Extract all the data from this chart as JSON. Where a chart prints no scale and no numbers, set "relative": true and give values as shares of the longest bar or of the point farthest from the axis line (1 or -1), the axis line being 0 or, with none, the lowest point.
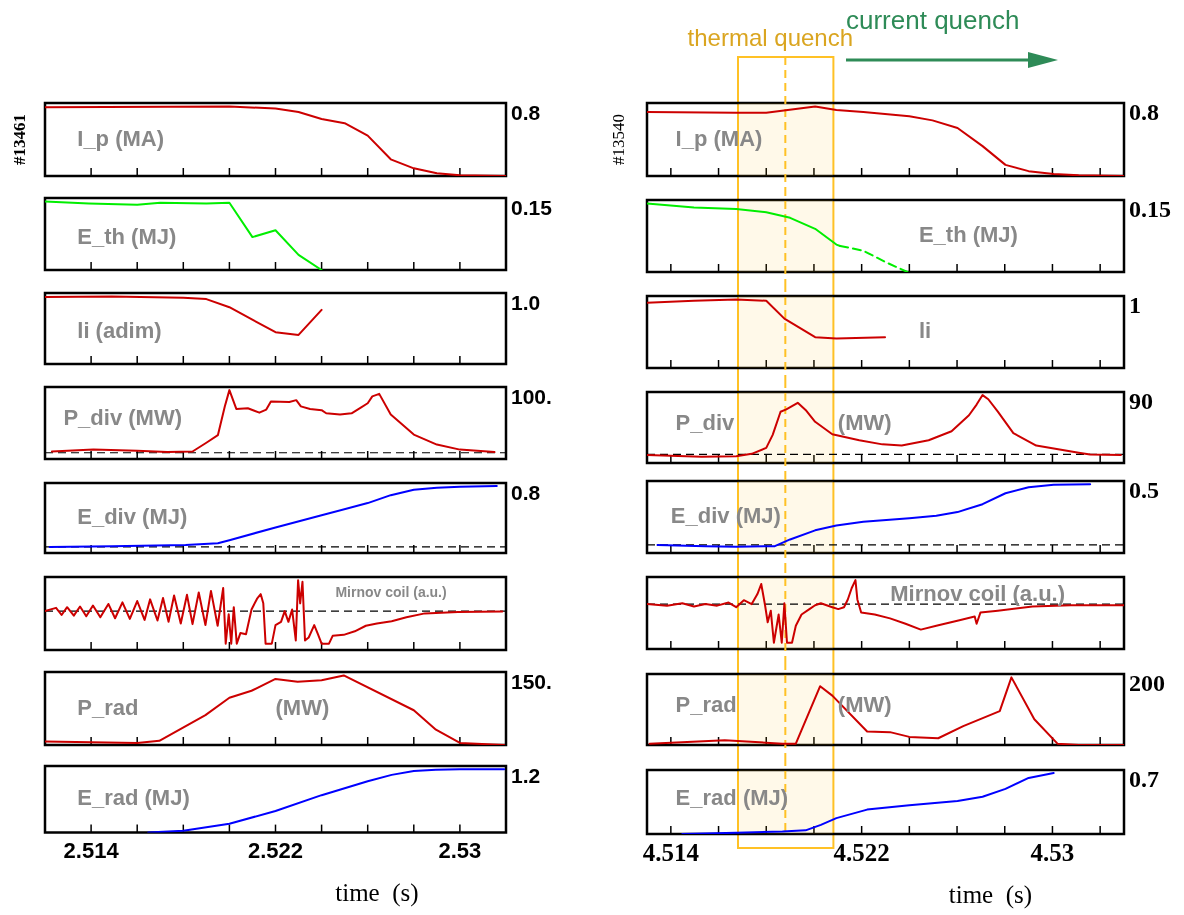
{
  "chart_data": [
    {
      "type": "line",
      "title": "I_p (MA)",
      "ylabel": "#13461",
      "annotations": [
        "0.8"
      ],
      "relative": true,
      "tick_labels": false,
      "xlim": [
        2.512,
        2.532
      ],
      "xticks": [
        2.514,
        {
          "value": 2.516,
          "label": null
        },
        {
          "value": 2.518,
          "label": null
        },
        {
          "value": 2.52,
          "label": null
        },
        2.522,
        {
          "value": 2.524,
          "label": null
        },
        {
          "value": 2.526,
          "label": null
        },
        {
          "value": 2.528,
          "label": null
        },
        2.53
      ],
      "series": [
        {
          "color": "#cc0000",
          "x": [
            2.512,
            2.52,
            2.522,
            2.523,
            2.524,
            2.525,
            2.526,
            2.527,
            2.528,
            2.529,
            2.53,
            2.532
          ],
          "values": [
            0.99,
            1.0,
            0.97,
            0.92,
            0.82,
            0.76,
            0.58,
            0.24,
            0.11,
            0.04,
            0.01,
            0
          ]
        }
      ]
    },
    {
      "type": "line",
      "title": "E_th (MJ)",
      "annotations": [
        "0.15"
      ],
      "relative": true,
      "tick_labels": false,
      "xlim": [
        2.512,
        2.532
      ],
      "xticks": [
        2.514,
        {
          "value": 2.516,
          "label": null
        },
        {
          "value": 2.518,
          "label": null
        },
        {
          "value": 2.52,
          "label": null
        },
        2.522,
        {
          "value": 2.524,
          "label": null
        },
        {
          "value": 2.526,
          "label": null
        },
        {
          "value": 2.528,
          "label": null
        },
        2.53
      ],
      "series": [
        {
          "color": "#00ee00",
          "x": [
            2.512,
            2.5139,
            2.516,
            2.517,
            2.519,
            2.52,
            2.521,
            2.522,
            2.523,
            2.524
          ],
          "values": [
            1.0,
            0.97,
            0.95,
            0.98,
            0.97,
            0.98,
            0.48,
            0.58,
            0.22,
            0
          ]
        }
      ]
    },
    {
      "type": "line",
      "title": "li (adim)",
      "annotations": [
        "1.0"
      ],
      "relative": true,
      "tick_labels": false,
      "xlim": [
        2.512,
        2.532
      ],
      "xticks": [
        2.514,
        {
          "value": 2.516,
          "label": null
        },
        {
          "value": 2.518,
          "label": null
        },
        {
          "value": 2.52,
          "label": null
        },
        2.522,
        {
          "value": 2.524,
          "label": null
        },
        {
          "value": 2.526,
          "label": null
        },
        {
          "value": 2.528,
          "label": null
        },
        2.53
      ],
      "series": [
        {
          "color": "#cc0000",
          "x": [
            2.512,
            2.5149,
            2.518,
            2.519,
            2.52,
            2.522,
            2.523,
            2.524
          ],
          "values": [
            0.99,
            1.0,
            0.98,
            0.96,
            0.84,
            0.47,
            0.43,
            0.8
          ]
        }
      ]
    },
    {
      "type": "line",
      "title": "P_div (MW)",
      "annotations": [
        "100."
      ],
      "relative": true,
      "tick_labels": false,
      "xlim": [
        2.512,
        2.532
      ],
      "xticks": [
        2.514,
        {
          "value": 2.516,
          "label": null
        },
        {
          "value": 2.518,
          "label": null
        },
        {
          "value": 2.52,
          "label": null
        },
        2.522,
        {
          "value": 2.524,
          "label": null
        },
        {
          "value": 2.526,
          "label": null
        },
        {
          "value": 2.528,
          "label": null
        },
        2.53
      ],
      "ref_lines": [
        {
          "axis": "y",
          "value": 0,
          "color": "#000000",
          "line_style": "dashed"
        }
      ],
      "series": [
        {
          "color": "#cc0000",
          "x": [
            2.5123,
            2.5141,
            2.516,
            2.5173,
            2.5184,
            2.519,
            2.5195,
            2.5198,
            2.52,
            2.5203,
            2.5208,
            2.5213,
            2.5216,
            2.5218,
            2.5226,
            2.5229,
            2.5231,
            2.5235,
            2.524,
            2.5242,
            2.5248,
            2.5253,
            2.5257,
            2.526,
            2.5262,
            2.5265,
            2.527,
            2.528,
            2.529,
            2.53,
            2.5315
          ],
          "values": [
            0.02,
            0.05,
            0.03,
            0.01,
            0.02,
            0.16,
            0.28,
            0.74,
            1.0,
            0.7,
            0.71,
            0.64,
            0.69,
            0.82,
            0.81,
            0.84,
            0.74,
            0.7,
            0.68,
            0.63,
            0.61,
            0.63,
            0.72,
            0.79,
            0.9,
            0.94,
            0.61,
            0.29,
            0.13,
            0.05,
            0.01
          ]
        }
      ]
    },
    {
      "type": "line",
      "title": "E_div (MJ)",
      "annotations": [
        "0.8"
      ],
      "relative": true,
      "tick_labels": false,
      "xlim": [
        2.512,
        2.532
      ],
      "xticks": [
        2.514,
        {
          "value": 2.516,
          "label": null
        },
        {
          "value": 2.518,
          "label": null
        },
        {
          "value": 2.52,
          "label": null
        },
        2.522,
        {
          "value": 2.524,
          "label": null
        },
        {
          "value": 2.526,
          "label": null
        },
        {
          "value": 2.528,
          "label": null
        },
        2.53
      ],
      "ref_lines": [
        {
          "axis": "y",
          "value": 0,
          "color": "#000000",
          "line_style": "dashed"
        }
      ],
      "series": [
        {
          "color": "#0000ff",
          "x": [
            2.5122,
            2.5149,
            2.5181,
            2.5195,
            2.52,
            2.522,
            2.524,
            2.526,
            2.527,
            2.528,
            2.529,
            2.53,
            2.5316
          ],
          "values": [
            0,
            0.01,
            0.03,
            0.06,
            0.11,
            0.32,
            0.52,
            0.72,
            0.85,
            0.94,
            0.97,
            0.99,
            1.0
          ]
        }
      ]
    },
    {
      "type": "line",
      "title": "Mirnov coil (a.u.)",
      "relative": true,
      "tick_labels": false,
      "xlim": [
        2.512,
        2.532
      ],
      "xticks": [
        2.514,
        {
          "value": 2.516,
          "label": null
        },
        {
          "value": 2.518,
          "label": null
        },
        {
          "value": 2.52,
          "label": null
        },
        2.522,
        {
          "value": 2.524,
          "label": null
        },
        {
          "value": 2.526,
          "label": null
        },
        {
          "value": 2.528,
          "label": null
        },
        2.53
      ],
      "ref_lines": [
        {
          "axis": "y",
          "value": 0,
          "color": "#000000",
          "line_style": "dashed"
        }
      ],
      "series": [
        {
          "color": "#cc0000",
          "x": [
            2.512,
            2.51248,
            2.51272,
            2.51296,
            2.51325,
            2.51352,
            2.51379,
            2.51408,
            2.5144,
            2.51475,
            2.51504,
            2.51536,
            2.51568,
            2.516,
            2.51632,
            2.51656,
            2.51688,
            2.51712,
            2.51736,
            2.5176,
            2.51789,
            2.51816,
            2.5184,
            2.51867,
            2.51896,
            2.5192,
            2.51949,
            2.51973,
            2.51984,
            2.51997,
            2.52008,
            2.52019,
            2.52032,
            2.52048,
            2.52072,
            2.52096,
            2.5212,
            2.52136,
            2.52147,
            2.52157,
            2.52184,
            2.522,
            2.52224,
            2.5224,
            2.52256,
            2.52272,
            2.52288,
            2.52298,
            2.52307,
            2.52317,
            2.52328,
            2.52344,
            2.52368,
            2.52384,
            2.524,
            2.52432,
            2.52448,
            2.52496,
            2.52544,
            2.52592,
            2.5264,
            2.52704,
            2.52768,
            2.52848,
            2.52992,
            2.53184
          ],
          "values": [
            0,
            0.1,
            -0.12,
            0.12,
            -0.14,
            0.14,
            -0.16,
            0.17,
            -0.19,
            0.22,
            -0.22,
            0.27,
            -0.24,
            0.31,
            -0.27,
            0.36,
            -0.29,
            0.4,
            -0.33,
            0.48,
            -0.38,
            0.5,
            -0.4,
            0.57,
            -0.43,
            0.62,
            -0.45,
            0.71,
            -1.0,
            -0.1,
            -1.0,
            0.12,
            -1.0,
            -0.67,
            -0.71,
            0.05,
            0.38,
            0.52,
            0.24,
            -1.0,
            -1.0,
            -0.43,
            -0.33,
            0,
            -0.33,
            0.05,
            -0.9,
            0.95,
            0.24,
            0.9,
            -0.9,
            -0.81,
            -0.43,
            -0.71,
            -1.0,
            -1.0,
            -0.76,
            -0.73,
            -0.62,
            -0.45,
            -0.38,
            -0.31,
            -0.19,
            -0.07,
            -0.03,
            -0.01
          ]
        }
      ]
    },
    {
      "type": "line",
      "title": "P_rad",
      "annotations": [
        "150.",
        "(MW)"
      ],
      "relative": true,
      "tick_labels": false,
      "xlim": [
        2.512,
        2.532
      ],
      "xticks": [
        2.514,
        {
          "value": 2.516,
          "label": null
        },
        {
          "value": 2.518,
          "label": null
        },
        {
          "value": 2.52,
          "label": null
        },
        2.522,
        {
          "value": 2.524,
          "label": null
        },
        {
          "value": 2.526,
          "label": null
        },
        {
          "value": 2.528,
          "label": null
        },
        2.53
      ],
      "series": [
        {
          "color": "#cc0000",
          "x": [
            2.512,
            2.516,
            2.51696,
            2.51896,
            2.52,
            2.52096,
            2.522,
            2.52296,
            2.524,
            2.52496,
            2.528,
            2.52896,
            2.53,
            2.53192
          ],
          "values": [
            0.05,
            0.03,
            0.06,
            0.43,
            0.68,
            0.78,
            0.95,
            0.91,
            0.93,
            1.0,
            0.5,
            0.22,
            0.03,
            0
          ]
        }
      ]
    },
    {
      "type": "line",
      "title": "E_rad (MJ)",
      "xlabel": "time  (s)",
      "annotations": [
        "1.2"
      ],
      "relative": true,
      "tick_labels": "x",
      "xlim": [
        2.512,
        2.532
      ],
      "xticks": [
        2.514,
        {
          "value": 2.516,
          "label": null
        },
        {
          "value": 2.518,
          "label": null
        },
        {
          "value": 2.52,
          "label": null
        },
        2.522,
        {
          "value": 2.524,
          "label": null
        },
        {
          "value": 2.526,
          "label": null
        },
        {
          "value": 2.528,
          "label": null
        },
        2.53
      ],
      "series": [
        {
          "color": "#0000ff",
          "x": [
            2.51648,
            2.518,
            2.52,
            2.522,
            2.524,
            2.526,
            2.52704,
            2.528,
            2.52896,
            2.53,
            2.53192
          ],
          "values": [
            0,
            0.03,
            0.14,
            0.34,
            0.59,
            0.81,
            0.91,
            0.97,
            0.99,
            1.0,
            1.0
          ]
        }
      ]
    },
    {
      "type": "line",
      "title": "I_p (MA)",
      "ylabel": "#13540",
      "annotations": [
        "0.8",
        "current quench"
      ],
      "relative": true,
      "tick_labels": false,
      "xlim": [
        4.513,
        4.533
      ],
      "xticks": [
        4.514,
        {
          "value": 4.516,
          "label": null
        },
        {
          "value": 4.518,
          "label": null
        },
        {
          "value": 4.52,
          "label": null
        },
        4.522,
        {
          "value": 4.524,
          "label": null
        },
        {
          "value": 4.526,
          "label": null
        },
        {
          "value": 4.528,
          "label": null
        },
        4.53,
        {
          "value": 4.532,
          "label": null
        }
      ],
      "bands": [
        {
          "axis": "x",
          "from": 4.5168,
          "to": 4.5208,
          "label": "thermal quench",
          "color": "#ffc125"
        }
      ],
      "ref_lines": [
        {
          "axis": "x",
          "value": 4.5188,
          "color": "#ffc125",
          "line_style": "dashed"
        }
      ],
      "series": [
        {
          "color": "#cc0000",
          "x": [
            4.513,
            4.51674,
            4.518,
            4.52005,
            4.52094,
            4.52207,
            4.524,
            4.52497,
            4.52602,
            4.52707,
            4.52803,
            4.529,
            4.53005,
            4.5311,
            4.533
          ],
          "values": [
            0.92,
            0.91,
            0.91,
            1.0,
            0.95,
            0.92,
            0.86,
            0.8,
            0.69,
            0.43,
            0.16,
            0.07,
            0.03,
            0.01,
            0
          ]
        }
      ]
    },
    {
      "type": "line",
      "title": "E_th (MJ)",
      "annotations": [
        "0.15"
      ],
      "relative": true,
      "tick_labels": false,
      "xlim": [
        4.513,
        4.533
      ],
      "xticks": [
        4.514,
        {
          "value": 4.516,
          "label": null
        },
        {
          "value": 4.518,
          "label": null
        },
        {
          "value": 4.52,
          "label": null
        },
        4.522,
        {
          "value": 4.524,
          "label": null
        },
        {
          "value": 4.526,
          "label": null
        },
        {
          "value": 4.528,
          "label": null
        },
        4.53,
        {
          "value": 4.532,
          "label": null
        }
      ],
      "bands": [
        {
          "axis": "x",
          "from": 4.5168,
          "to": 4.5208,
          "color": "#ffc125"
        }
      ],
      "ref_lines": [
        {
          "axis": "x",
          "value": 4.5188,
          "color": "#ffc125",
          "line_style": "dashed"
        }
      ],
      "series": [
        {
          "color": "#00ee00",
          "x": [
            4.513,
            4.51497,
            4.51674,
            4.518,
            4.519,
            4.52005,
            4.52094,
            4.5211
          ],
          "values": [
            1.0,
            0.94,
            0.92,
            0.87,
            0.79,
            0.63,
            0.4,
            0.38
          ]
        },
        {
          "color": "#00ee00",
          "line_style": "dashed",
          "x": [
            4.5211,
            4.52207,
            4.52303,
            4.52392
          ],
          "values": [
            0.38,
            0.31,
            0.14,
            0
          ]
        }
      ]
    },
    {
      "type": "line",
      "title": "li",
      "annotations": [
        "1"
      ],
      "relative": true,
      "tick_labels": false,
      "xlim": [
        4.513,
        4.533
      ],
      "xticks": [
        4.514,
        {
          "value": 4.516,
          "label": null
        },
        {
          "value": 4.518,
          "label": null
        },
        {
          "value": 4.52,
          "label": null
        },
        4.522,
        {
          "value": 4.524,
          "label": null
        },
        {
          "value": 4.526,
          "label": null
        },
        {
          "value": 4.528,
          "label": null
        },
        4.53,
        {
          "value": 4.532,
          "label": null
        }
      ],
      "bands": [
        {
          "axis": "x",
          "from": 4.5168,
          "to": 4.5208,
          "color": "#ffc125"
        }
      ],
      "ref_lines": [
        {
          "axis": "x",
          "value": 4.5188,
          "color": "#ffc125",
          "line_style": "dashed"
        }
      ],
      "series": [
        {
          "color": "#cc0000",
          "x": [
            4.513,
            4.51497,
            4.51674,
            4.518,
            4.51876,
            4.52005,
            4.52094,
            4.52298
          ],
          "values": [
            0.95,
            0.98,
            1.0,
            0.98,
            0.72,
            0.45,
            0.43,
            0.45
          ]
        }
      ]
    },
    {
      "type": "line",
      "title": "P_div",
      "annotations": [
        "90",
        "(MW)"
      ],
      "relative": true,
      "tick_labels": false,
      "xlim": [
        4.513,
        4.533
      ],
      "xticks": [
        4.514,
        {
          "value": 4.516,
          "label": null
        },
        {
          "value": 4.518,
          "label": null
        },
        {
          "value": 4.52,
          "label": null
        },
        4.522,
        {
          "value": 4.524,
          "label": null
        },
        {
          "value": 4.526,
          "label": null
        },
        {
          "value": 4.528,
          "label": null
        },
        4.53,
        {
          "value": 4.532,
          "label": null
        }
      ],
      "bands": [
        {
          "axis": "x",
          "from": 4.5168,
          "to": 4.5208,
          "color": "#ffc125"
        }
      ],
      "ref_lines": [
        {
          "axis": "y",
          "value": 0,
          "color": "#000000",
          "line_style": "dashed"
        },
        {
          "axis": "x",
          "value": 4.5188,
          "color": "#ffc125",
          "line_style": "dashed"
        }
      ],
      "series": [
        {
          "color": "#cc0000",
          "x": [
            4.513,
            4.51529,
            4.51674,
            4.51739,
            4.518,
            4.51827,
            4.5186,
            4.51884,
            4.51932,
            4.51965,
            4.52005,
            4.52077,
            4.5219,
            4.52287,
            4.52368,
            4.52481,
            4.52577,
            4.5265,
            4.52682,
            4.52707,
            4.52731,
            4.52771,
            4.52836,
            4.52932,
            4.5311,
            4.53158,
            4.53287
          ],
          "values": [
            -0.01,
            -0.04,
            -0.03,
            0.01,
            0.11,
            0.33,
            0.72,
            0.76,
            0.87,
            0.75,
            0.55,
            0.34,
            0.24,
            0.17,
            0.15,
            0.24,
            0.39,
            0.66,
            0.84,
            1.0,
            0.93,
            0.72,
            0.36,
            0.15,
            0.03,
            0,
            -0.01
          ]
        }
      ]
    },
    {
      "type": "line",
      "title": "E_div (MJ)",
      "annotations": [
        "0.5"
      ],
      "relative": true,
      "tick_labels": false,
      "xlim": [
        4.513,
        4.533
      ],
      "xticks": [
        4.514,
        {
          "value": 4.516,
          "label": null
        },
        {
          "value": 4.518,
          "label": null
        },
        {
          "value": 4.52,
          "label": null
        },
        4.522,
        {
          "value": 4.524,
          "label": null
        },
        {
          "value": 4.526,
          "label": null
        },
        {
          "value": 4.528,
          "label": null
        },
        4.53,
        {
          "value": 4.532,
          "label": null
        }
      ],
      "bands": [
        {
          "axis": "x",
          "from": 4.5168,
          "to": 4.5208,
          "color": "#ffc125"
        }
      ],
      "ref_lines": [
        {
          "axis": "y",
          "value": 0,
          "color": "#000000",
          "line_style": "dashed"
        },
        {
          "axis": "x",
          "value": 4.5188,
          "color": "#ffc125",
          "line_style": "dashed"
        }
      ],
      "series": [
        {
          "color": "#0000ff",
          "x": [
            4.51344,
            4.51545,
            4.51674,
            4.51836,
            4.519,
            4.52005,
            4.52094,
            4.52207,
            4.524,
            4.52513,
            4.52602,
            4.52707,
            4.52803,
            4.529,
            4.53005,
            4.53158
          ],
          "values": [
            0,
            -0.02,
            -0.03,
            -0.02,
            0.09,
            0.24,
            0.32,
            0.38,
            0.44,
            0.48,
            0.54,
            0.67,
            0.85,
            0.95,
            0.99,
            1.0
          ]
        }
      ]
    },
    {
      "type": "line",
      "title": "Mirnov coil (a.u.)",
      "relative": true,
      "tick_labels": false,
      "xlim": [
        4.513,
        4.533
      ],
      "xticks": [
        4.514,
        {
          "value": 4.516,
          "label": null
        },
        {
          "value": 4.518,
          "label": null
        },
        {
          "value": 4.52,
          "label": null
        },
        4.522,
        {
          "value": 4.524,
          "label": null
        },
        {
          "value": 4.526,
          "label": null
        },
        {
          "value": 4.528,
          "label": null
        },
        4.53,
        {
          "value": 4.532,
          "label": null
        }
      ],
      "bands": [
        {
          "axis": "x",
          "from": 4.5168,
          "to": 4.5208,
          "color": "#ffc125"
        }
      ],
      "ref_lines": [
        {
          "axis": "y",
          "value": 0,
          "color": "#000000",
          "line_style": "dashed"
        },
        {
          "axis": "x",
          "value": 4.5188,
          "color": "#ffc125",
          "line_style": "dashed"
        }
      ],
      "series": [
        {
          "color": "#cc0000",
          "x": [
            4.513,
            4.51384,
            4.51448,
            4.51497,
            4.51545,
            4.51594,
            4.51642,
            4.51674,
            4.51706,
            4.51739,
            4.51763,
            4.51779,
            4.51795,
            4.51806,
            4.51819,
            4.51832,
            4.51852,
            4.51865,
            4.51876,
            4.51887,
            4.51908,
            4.51924,
            4.51948,
            4.51981,
            4.52005,
            4.52029,
            4.52053,
            4.52077,
            4.52102,
            4.52126,
            4.52142,
            4.52158,
            4.52174,
            4.52182,
            4.52198,
            4.52255,
            4.52319,
            4.52384,
            4.52448,
            4.52513,
            4.5261,
            4.52674,
            4.52682,
            4.52698,
            4.52771,
            4.52916,
            4.53078,
            4.533
          ],
          "values": [
            0,
            -0.04,
            0.02,
            -0.06,
            0,
            -0.04,
            0.04,
            -0.08,
            0.1,
            0,
            0.26,
            0.52,
            -0.03,
            -0.47,
            -0.17,
            -1.0,
            -0.27,
            -1.0,
            0.02,
            -1.0,
            -1.0,
            -0.56,
            -0.27,
            -0.13,
            -0.03,
            0.02,
            -0.03,
            -0.08,
            -0.13,
            -0.08,
            0.12,
            0.41,
            0.62,
            0.12,
            -0.22,
            -0.27,
            -0.37,
            -0.51,
            -0.66,
            -0.56,
            -0.42,
            -0.32,
            -0.51,
            -0.22,
            -0.17,
            -0.06,
            -0.03,
            -0.03
          ]
        }
      ]
    },
    {
      "type": "line",
      "title": "P_rad",
      "annotations": [
        "200",
        "(MW)"
      ],
      "relative": true,
      "tick_labels": false,
      "xlim": [
        4.513,
        4.533
      ],
      "xticks": [
        4.514,
        {
          "value": 4.516,
          "label": null
        },
        {
          "value": 4.518,
          "label": null
        },
        {
          "value": 4.52,
          "label": null
        },
        4.522,
        {
          "value": 4.524,
          "label": null
        },
        {
          "value": 4.526,
          "label": null
        },
        {
          "value": 4.528,
          "label": null
        },
        4.53,
        {
          "value": 4.532,
          "label": null
        }
      ],
      "bands": [
        {
          "axis": "x",
          "from": 4.5168,
          "to": 4.5208,
          "color": "#ffc125"
        }
      ],
      "ref_lines": [
        {
          "axis": "x",
          "value": 4.5188,
          "color": "#ffc125",
          "line_style": "dashed"
        }
      ],
      "series": [
        {
          "color": "#cc0000",
          "x": [
            4.51311,
            4.51626,
            4.51868,
            4.51924,
            4.52026,
            4.52077,
            4.52223,
            4.52319,
            4.524,
            4.52521,
            4.52626,
            4.52779,
            4.52828,
            4.52924,
            4.53021,
            4.5311,
            4.533
          ],
          "values": [
            0.02,
            0.07,
            0.02,
            0.02,
            0.87,
            0.73,
            0.2,
            0.19,
            0.12,
            0.1,
            0.28,
            0.5,
            1.0,
            0.38,
            0.02,
            0,
            0
          ]
        }
      ]
    },
    {
      "type": "line",
      "title": "E_rad (MJ)",
      "xlabel": "time  (s)",
      "annotations": [
        "0.7"
      ],
      "relative": true,
      "tick_labels": "x",
      "xlim": [
        4.513,
        4.533
      ],
      "xticks": [
        4.514,
        {
          "value": 4.516,
          "label": null
        },
        {
          "value": 4.518,
          "label": null
        },
        {
          "value": 4.52,
          "label": null
        },
        4.522,
        {
          "value": 4.524,
          "label": null
        },
        {
          "value": 4.526,
          "label": null
        },
        {
          "value": 4.528,
          "label": null
        },
        4.53,
        {
          "value": 4.532,
          "label": null
        }
      ],
      "bands": [
        {
          "axis": "x",
          "from": 4.5168,
          "to": 4.5208,
          "color": "#ffc125"
        }
      ],
      "ref_lines": [
        {
          "axis": "x",
          "value": 4.5188,
          "color": "#ffc125",
          "line_style": "dashed"
        }
      ],
      "series": [
        {
          "color": "#0000ff",
          "x": [
            4.51448,
            4.51674,
            4.51868,
            4.51965,
            4.52029,
            4.52094,
            4.52223,
            4.524,
            4.52602,
            4.52707,
            4.52803,
            4.529,
            4.53005
          ],
          "values": [
            0,
            0.02,
            0.04,
            0.06,
            0.15,
            0.26,
            0.4,
            0.47,
            0.54,
            0.61,
            0.74,
            0.92,
            1.0
          ]
        }
      ]
    }
  ]
}
